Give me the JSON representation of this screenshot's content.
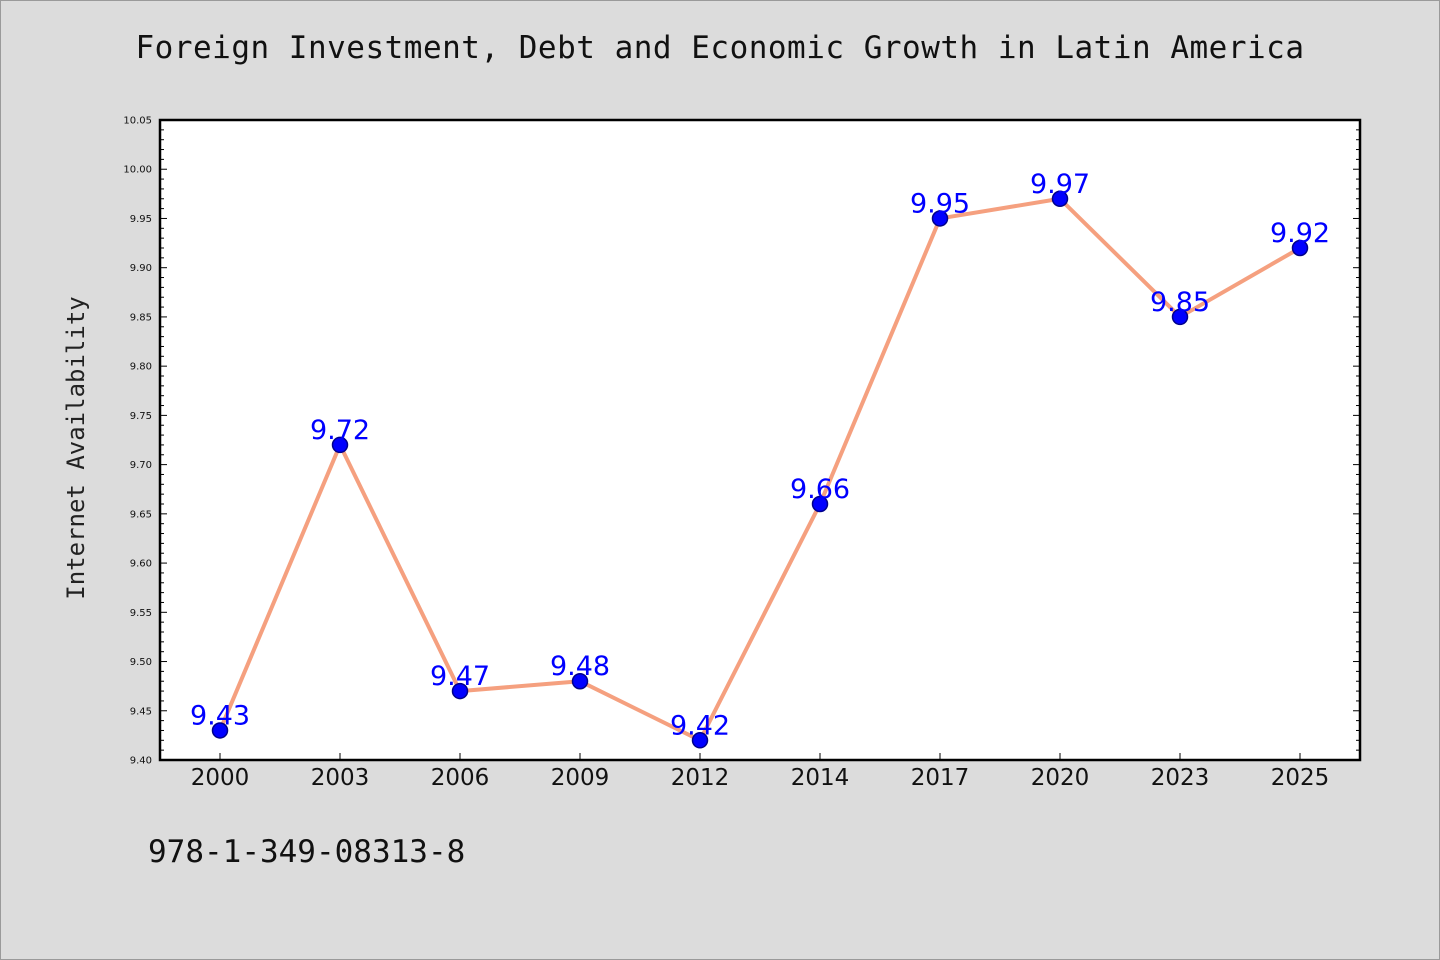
{
  "chart_data": {
    "type": "line",
    "title": "Foreign Investment, Debt and Economic Growth in Latin America",
    "xlabel": "",
    "ylabel": "Internet Availability",
    "categories": [
      "2000",
      "2003",
      "2006",
      "2009",
      "2012",
      "2014",
      "2017",
      "2020",
      "2023",
      "2025"
    ],
    "series": [
      {
        "values": [
          9.43,
          9.72,
          9.47,
          9.48,
          9.42,
          9.66,
          9.95,
          9.97,
          9.85,
          9.92
        ]
      }
    ],
    "data_labels": [
      "9.43",
      "9.72",
      "9.47",
      "9.48",
      "9.42",
      "9.66",
      "9.95",
      "9.97",
      "9.85",
      "9.92"
    ],
    "ylim": [
      9.4,
      10.05
    ],
    "yticks": [
      "9.40",
      "9.45",
      "9.50",
      "9.55",
      "9.60",
      "9.65",
      "9.70",
      "9.75",
      "9.80",
      "9.85",
      "9.90",
      "9.95",
      "10.00",
      "10.05"
    ],
    "grid": false,
    "colors": {
      "line": "#f5a07f",
      "marker_fill": "#0000ff",
      "marker_edge": "#00008b",
      "data_label": "#0000ff",
      "background": "#dcdcdc",
      "plot_background": "#ffffff"
    }
  },
  "footer": {
    "isbn": "978-1-349-08313-8"
  }
}
